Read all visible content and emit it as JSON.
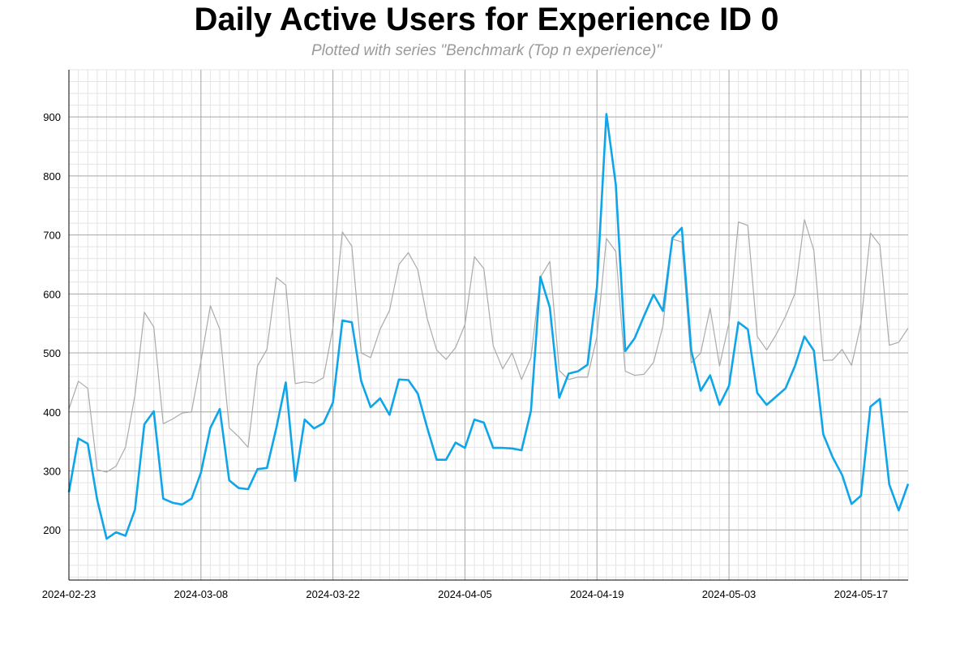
{
  "chart_data": {
    "type": "line",
    "title": "Daily Active Users for Experience ID 0",
    "subtitle": "Plotted with series \"Benchmark (Top n experience)\"",
    "xlabel": "",
    "ylabel": "",
    "x_ticks": [
      "2024-02-23",
      "2024-03-08",
      "2024-03-22",
      "2024-04-05",
      "2024-04-19",
      "2024-05-03",
      "2024-05-17"
    ],
    "y_ticks": [
      200,
      300,
      400,
      500,
      600,
      700,
      800,
      900
    ],
    "xlim": [
      "2024-02-23",
      "2024-05-22"
    ],
    "ylim": [
      115,
      980
    ],
    "grid": true,
    "colors": {
      "main": "#0ea5e9",
      "benchmark": "#aaaaaa",
      "grid_major": "#aaaaaa",
      "grid_minor": "#e4e4e4"
    },
    "dates": [
      "2024-02-23",
      "2024-02-24",
      "2024-02-25",
      "2024-02-26",
      "2024-02-27",
      "2024-02-28",
      "2024-02-29",
      "2024-03-01",
      "2024-03-02",
      "2024-03-03",
      "2024-03-04",
      "2024-03-05",
      "2024-03-06",
      "2024-03-07",
      "2024-03-08",
      "2024-03-09",
      "2024-03-10",
      "2024-03-11",
      "2024-03-12",
      "2024-03-13",
      "2024-03-14",
      "2024-03-15",
      "2024-03-16",
      "2024-03-17",
      "2024-03-18",
      "2024-03-19",
      "2024-03-20",
      "2024-03-21",
      "2024-03-22",
      "2024-03-23",
      "2024-03-24",
      "2024-03-25",
      "2024-03-26",
      "2024-03-27",
      "2024-03-28",
      "2024-03-29",
      "2024-03-30",
      "2024-03-31",
      "2024-04-01",
      "2024-04-02",
      "2024-04-03",
      "2024-04-04",
      "2024-04-05",
      "2024-04-06",
      "2024-04-07",
      "2024-04-08",
      "2024-04-09",
      "2024-04-10",
      "2024-04-11",
      "2024-04-12",
      "2024-04-13",
      "2024-04-14",
      "2024-04-15",
      "2024-04-16",
      "2024-04-17",
      "2024-04-18",
      "2024-04-19",
      "2024-04-20",
      "2024-04-21",
      "2024-04-22",
      "2024-04-23",
      "2024-04-24",
      "2024-04-25",
      "2024-04-26",
      "2024-04-27",
      "2024-04-28",
      "2024-04-29",
      "2024-04-30",
      "2024-05-01",
      "2024-05-02",
      "2024-05-03",
      "2024-05-04",
      "2024-05-05",
      "2024-05-06",
      "2024-05-07",
      "2024-05-08",
      "2024-05-09",
      "2024-05-10",
      "2024-05-11",
      "2024-05-12",
      "2024-05-13",
      "2024-05-14",
      "2024-05-15",
      "2024-05-16",
      "2024-05-17",
      "2024-05-18",
      "2024-05-19",
      "2024-05-20",
      "2024-05-21",
      "2024-05-22"
    ],
    "series": [
      {
        "values": [
          405,
          452,
          440,
          302,
          298,
          308,
          340,
          428,
          569,
          544,
          380,
          388,
          398,
          400,
          486,
          580,
          540,
          373,
          358,
          340,
          478,
          506,
          628,
          615,
          448,
          451,
          449,
          458,
          543,
          705,
          681,
          500,
          492,
          540,
          572,
          650,
          670,
          641,
          558,
          505,
          489,
          509,
          548,
          663,
          643,
          512,
          473,
          500,
          455,
          492,
          628,
          655,
          470,
          455,
          459,
          459,
          528,
          694,
          672,
          469,
          462,
          464,
          484,
          546,
          693,
          688,
          483,
          500,
          576,
          478,
          551,
          722,
          716,
          528,
          505,
          531,
          562,
          601,
          726,
          674,
          487,
          488,
          506,
          479,
          550,
          703,
          683,
          513,
          518,
          542
        ]
      },
      {
        "values": [
          264,
          355,
          346,
          251,
          185,
          196,
          190,
          234,
          379,
          401,
          253,
          246,
          243,
          253,
          297,
          373,
          405,
          284,
          271,
          269,
          303,
          305,
          373,
          450,
          283,
          387,
          372,
          381,
          416,
          555,
          552,
          452,
          408,
          423,
          395,
          455,
          454,
          431,
          373,
          319,
          319,
          348,
          339,
          387,
          382,
          339,
          339,
          338,
          335,
          402,
          629,
          577,
          424,
          465,
          469,
          480,
          612,
          905,
          785,
          503,
          525,
          563,
          599,
          571,
          695,
          712,
          504,
          436,
          462,
          412,
          444,
          552,
          540,
          432,
          412,
          426,
          440,
          478,
          528,
          504,
          362,
          323,
          293,
          244,
          258,
          409,
          422,
          277,
          233,
          278
        ]
      }
    ]
  }
}
